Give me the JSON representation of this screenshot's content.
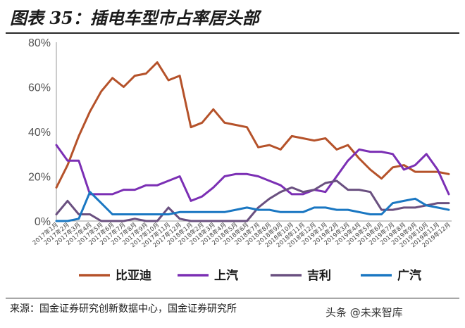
{
  "header": {
    "title": "图表 35：插电车型市占率居头部"
  },
  "footer": {
    "source": "来源：国金证券研究创新数据中心，国金证券研究所",
    "watermark": "头条 @未来智库"
  },
  "chart_data": {
    "type": "line",
    "ylim": [
      0,
      80
    ],
    "y_ticks": [
      "0%",
      "20%",
      "40%",
      "60%",
      "80%"
    ],
    "grid": false,
    "legend_position": "bottom",
    "categories": [
      "2017年1月",
      "2017年2月",
      "2017年3月",
      "2017年4月",
      "2017年5月",
      "2017年6月",
      "2017年7月",
      "2017年8月",
      "2017年9月",
      "2017年10月",
      "2017年11月",
      "2017年12月",
      "2018年1月",
      "2018年2月",
      "2018年3月",
      "2018年4月",
      "2018年5月",
      "2018年6月",
      "2018年7月",
      "2018年8月",
      "2018年9月",
      "2018年10月",
      "2018年11月",
      "2018年12月",
      "2019年1月",
      "2019年2月",
      "2019年3月",
      "2019年4月",
      "2019年5月",
      "2019年6月",
      "2019年7月",
      "2019年8月",
      "2019年9月",
      "2019年10月",
      "2019年11月",
      "2019年12月"
    ],
    "series": [
      {
        "name": "比亚迪",
        "color": "#b5522a",
        "values": [
          15,
          25,
          38,
          49,
          58,
          64,
          60,
          65,
          66,
          71,
          63,
          65,
          42,
          44,
          50,
          44,
          43,
          42,
          33,
          34,
          32,
          38,
          37,
          36,
          37,
          32,
          34,
          28,
          23,
          19,
          24,
          25,
          22,
          22,
          22,
          21
        ]
      },
      {
        "name": "上汽",
        "color": "#7b2fb4",
        "values": [
          34,
          27,
          27,
          12,
          12,
          12,
          14,
          14,
          16,
          16,
          18,
          20,
          9,
          11,
          15,
          20,
          21,
          21,
          20,
          18,
          16,
          12,
          12,
          14,
          13,
          20,
          27,
          32,
          31,
          31,
          30,
          23,
          25,
          30,
          23,
          12
        ]
      },
      {
        "name": "吉利",
        "color": "#6a5080",
        "values": [
          3,
          9,
          3,
          3,
          0,
          0,
          0,
          1,
          0,
          0,
          6,
          1,
          0,
          0,
          0,
          0,
          0,
          0,
          6,
          10,
          13,
          15,
          13,
          14,
          17,
          18,
          14,
          14,
          13,
          5,
          5,
          6,
          6,
          7,
          8,
          8
        ]
      },
      {
        "name": "广汽",
        "color": "#1a77c2",
        "values": [
          0,
          0,
          1,
          13,
          8,
          3,
          3,
          3,
          3,
          3,
          3,
          4,
          4,
          4,
          4,
          4,
          5,
          6,
          5,
          5,
          4,
          4,
          4,
          6,
          6,
          5,
          5,
          4,
          3,
          3,
          8,
          9,
          10,
          7,
          6,
          5
        ]
      }
    ]
  }
}
